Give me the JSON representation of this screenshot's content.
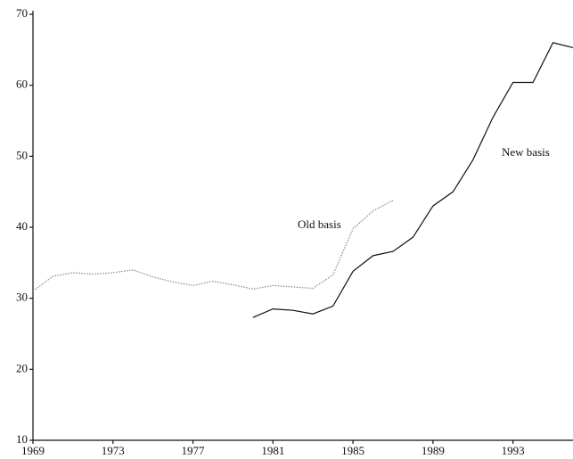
{
  "chart_data": {
    "type": "line",
    "x": [
      1969,
      1970,
      1971,
      1972,
      1973,
      1974,
      1975,
      1976,
      1977,
      1978,
      1979,
      1980,
      1981,
      1982,
      1983,
      1984,
      1985,
      1986,
      1987,
      1988,
      1989,
      1990,
      1991,
      1992,
      1993,
      1994,
      1995,
      1996
    ],
    "series": [
      {
        "name": "Old basis",
        "color": "#888888",
        "style": "dotted",
        "values": [
          31.0,
          33.1,
          33.6,
          33.4,
          33.6,
          34.0,
          33.0,
          32.3,
          31.8,
          32.4,
          31.9,
          31.3,
          31.8,
          31.6,
          31.4,
          33.3,
          39.8,
          42.3,
          43.8,
          null,
          null,
          null,
          null,
          null,
          null,
          null,
          null,
          null
        ]
      },
      {
        "name": "New basis",
        "color": "#111111",
        "style": "solid",
        "values": [
          null,
          null,
          null,
          null,
          null,
          null,
          null,
          null,
          null,
          null,
          null,
          27.3,
          28.5,
          28.3,
          27.8,
          28.9,
          33.8,
          36.0,
          36.6,
          38.6,
          43.0,
          45.0,
          49.5,
          55.5,
          60.4,
          60.4,
          66.0,
          65.3
        ]
      }
    ],
    "xlim": [
      1969,
      1996
    ],
    "xticks": [
      1969,
      1973,
      1977,
      1981,
      1985,
      1989,
      1993
    ],
    "ylim": [
      10,
      70
    ],
    "yticks": [
      10,
      20,
      30,
      40,
      50,
      60,
      70
    ]
  }
}
